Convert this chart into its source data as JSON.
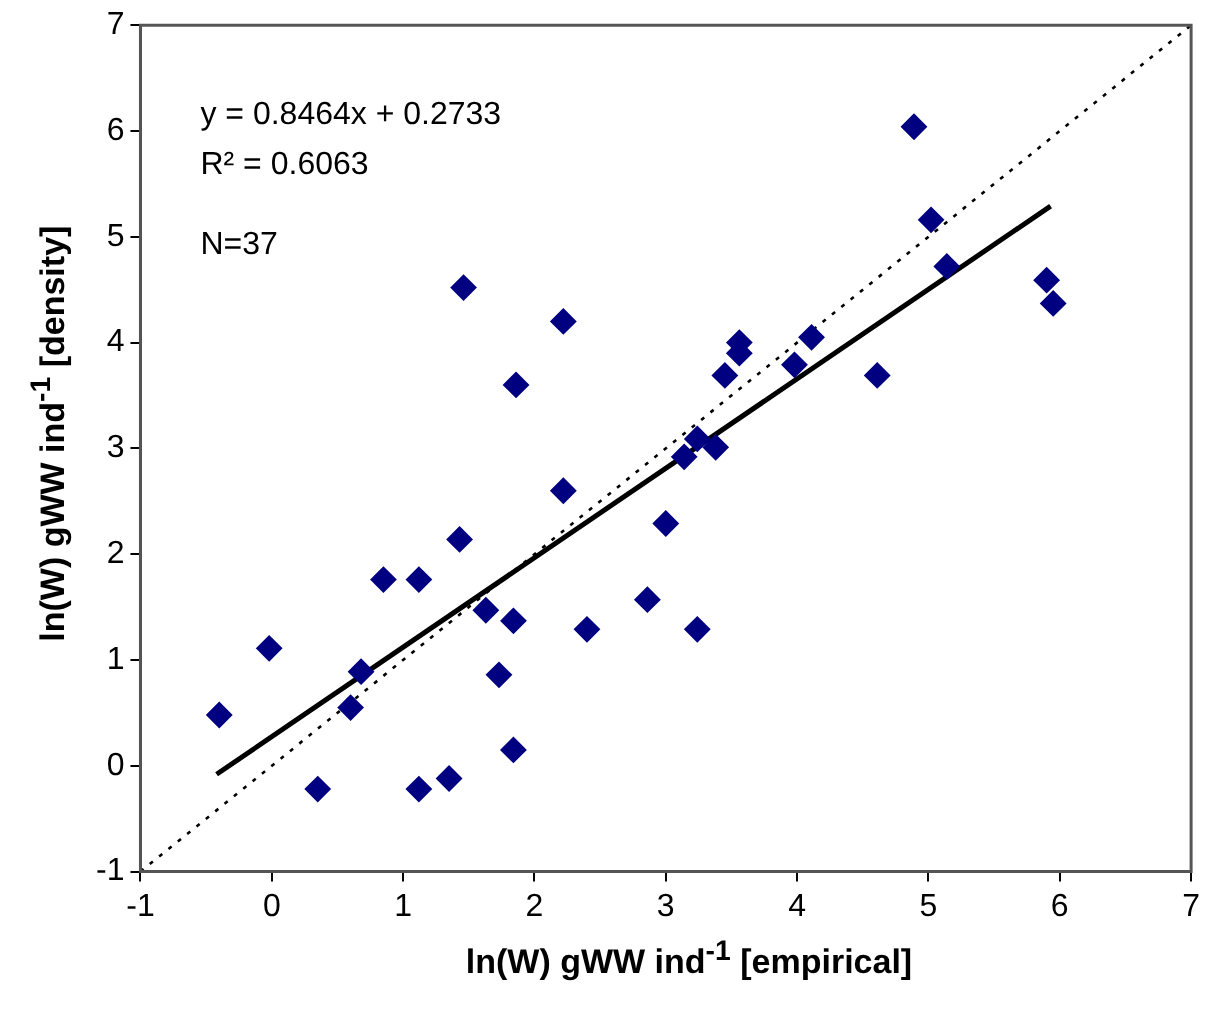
{
  "chart_data": {
    "type": "scatter",
    "xlabel": "ln(W) gWW ind$^{-1}$ [empirical]",
    "ylabel": "ln(W) gWW ind$^{-1}$ [density]",
    "annotations": [
      "y = 0.8464x + 0.2733",
      "R² = 0.6063",
      "N=37"
    ],
    "xlim": [
      -1,
      7
    ],
    "ylim": [
      -1,
      7
    ],
    "xticks": [
      -1,
      0,
      1,
      2,
      3,
      4,
      5,
      6,
      7
    ],
    "yticks": [
      -1,
      0,
      1,
      2,
      3,
      4,
      5,
      6,
      7
    ],
    "grid": false,
    "legend": false,
    "marker": "diamond",
    "series": [
      {
        "color": "#000080",
        "x": [
          -0.4,
          -0.02,
          0.35,
          0.6,
          0.68,
          0.85,
          1.12,
          1.12,
          1.35,
          1.43,
          1.46,
          1.63,
          1.73,
          1.84,
          1.84,
          1.86,
          2.22,
          2.22,
          2.4,
          2.86,
          3.0,
          3.24,
          3.14,
          3.24,
          3.38,
          3.45,
          3.56,
          3.56,
          3.98,
          4.11,
          4.61,
          4.89,
          5.02,
          5.14,
          5.9,
          5.95
        ],
        "values": [
          0.48,
          1.11,
          -0.22,
          0.55,
          0.89,
          1.76,
          1.76,
          -0.22,
          -0.12,
          2.14,
          4.52,
          1.47,
          0.86,
          1.37,
          0.15,
          3.6,
          4.2,
          2.6,
          1.29,
          1.57,
          2.29,
          1.29,
          2.92,
          3.09,
          3.01,
          3.69,
          4.0,
          3.9,
          3.79,
          4.05,
          3.69,
          6.04,
          5.16,
          4.72,
          4.59,
          4.37
        ]
      },
      {
        "type": "line",
        "color": "#000000",
        "marker": "none",
        "line_style": "solid",
        "x": [
          -0.42,
          5.93
        ],
        "values": [
          -0.08,
          5.29
        ]
      },
      {
        "type": "line",
        "color": "#000000",
        "marker": "none",
        "line_style": "dotted",
        "x": [
          -1,
          7
        ],
        "values": [
          -1,
          7
        ]
      }
    ]
  }
}
